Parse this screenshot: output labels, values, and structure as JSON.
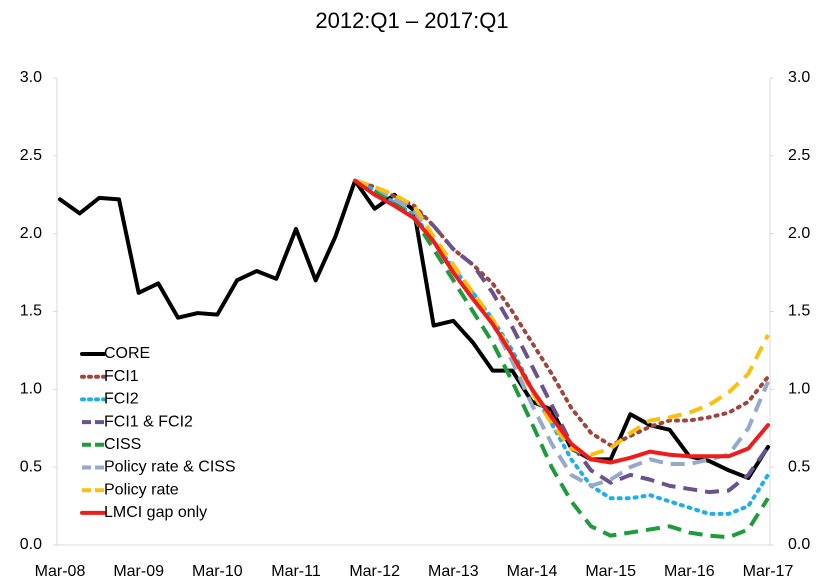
{
  "chart_data": {
    "type": "line",
    "title": "2012:Q1 – 2017:Q1",
    "categories": [
      "Mar-08",
      null,
      null,
      null,
      "Mar-09",
      null,
      null,
      null,
      "Mar-10",
      null,
      null,
      null,
      "Mar-11",
      null,
      null,
      null,
      "Mar-12",
      null,
      null,
      null,
      "Mar-13",
      null,
      null,
      null,
      "Mar-14",
      null,
      null,
      null,
      "Mar-15",
      null,
      null,
      null,
      "Mar-16",
      null,
      null,
      null,
      "Mar-17"
    ],
    "ylim": [
      0,
      3
    ],
    "yticks": [
      {
        "value": 0,
        "label": "0.0"
      },
      {
        "value": 0.5,
        "label": "0.5"
      },
      {
        "value": 1,
        "label": "1.0"
      },
      {
        "value": 1.5,
        "label": "1.5"
      },
      {
        "value": 2,
        "label": "2.0"
      },
      {
        "value": 2.5,
        "label": "2.5"
      },
      {
        "value": 3,
        "label": "3.0"
      }
    ],
    "y2lim": [
      0,
      3
    ],
    "y2ticks": [
      {
        "value": 0,
        "label": "0.0"
      },
      {
        "value": 0.5,
        "label": "0.5"
      },
      {
        "value": 1,
        "label": "1.0"
      },
      {
        "value": 1.5,
        "label": "1.5"
      },
      {
        "value": 2,
        "label": "2.0"
      },
      {
        "value": 2.5,
        "label": "2.5"
      },
      {
        "value": 3,
        "label": "3.0"
      }
    ],
    "legend": "left",
    "series": [
      {
        "name": "CORE",
        "color": "#000000",
        "dash": "solid",
        "values": [
          2.22,
          2.13,
          2.23,
          2.22,
          1.62,
          1.68,
          1.46,
          1.49,
          1.48,
          1.7,
          1.76,
          1.71,
          2.03,
          1.7,
          1.98,
          2.34,
          2.16,
          2.25,
          2.15,
          1.41,
          1.44,
          1.3,
          1.12,
          1.12,
          0.92,
          0.87,
          0.62,
          0.55,
          0.55,
          0.84,
          0.77,
          0.74,
          0.57,
          0.54,
          0.48,
          0.43,
          0.63
        ]
      },
      {
        "name": "FCI1",
        "color": "#a0453d",
        "dash": "dot",
        "values": [
          null,
          null,
          null,
          null,
          null,
          null,
          null,
          null,
          null,
          null,
          null,
          null,
          null,
          null,
          null,
          2.34,
          2.3,
          2.24,
          2.18,
          2.05,
          1.9,
          1.8,
          1.68,
          1.5,
          1.3,
          1.1,
          0.88,
          0.72,
          0.64,
          0.7,
          0.76,
          0.8,
          0.8,
          0.82,
          0.85,
          0.92,
          1.08
        ]
      },
      {
        "name": "FCI2",
        "color": "#1eaee8",
        "dash": "dot",
        "values": [
          null,
          null,
          null,
          null,
          null,
          null,
          null,
          null,
          null,
          null,
          null,
          null,
          null,
          null,
          null,
          2.34,
          2.28,
          2.2,
          2.12,
          1.95,
          1.78,
          1.62,
          1.45,
          1.25,
          1.0,
          0.78,
          0.55,
          0.38,
          0.3,
          0.3,
          0.32,
          0.28,
          0.24,
          0.2,
          0.2,
          0.25,
          0.45
        ]
      },
      {
        "name": "FCI1 & FCI2",
        "color": "#6a528c",
        "dash": "dash",
        "values": [
          null,
          null,
          null,
          null,
          null,
          null,
          null,
          null,
          null,
          null,
          null,
          null,
          null,
          null,
          null,
          2.34,
          2.3,
          2.24,
          2.16,
          2.05,
          1.9,
          1.8,
          1.62,
          1.4,
          1.15,
          0.9,
          0.65,
          0.48,
          0.4,
          0.45,
          0.42,
          0.38,
          0.36,
          0.34,
          0.35,
          0.45,
          0.63
        ]
      },
      {
        "name": "CISS",
        "color": "#1e9b3c",
        "dash": "dash",
        "values": [
          null,
          null,
          null,
          null,
          null,
          null,
          null,
          null,
          null,
          null,
          null,
          null,
          null,
          null,
          null,
          2.34,
          2.28,
          2.2,
          2.1,
          1.9,
          1.7,
          1.5,
          1.3,
          1.05,
          0.78,
          0.5,
          0.28,
          0.12,
          0.06,
          0.08,
          0.1,
          0.12,
          0.08,
          0.06,
          0.05,
          0.1,
          0.3
        ]
      },
      {
        "name": "Policy rate & CISS",
        "color": "#95a9cd",
        "dash": "dash",
        "values": [
          null,
          null,
          null,
          null,
          null,
          null,
          null,
          null,
          null,
          null,
          null,
          null,
          null,
          null,
          null,
          2.34,
          2.3,
          2.22,
          2.15,
          1.95,
          1.78,
          1.62,
          1.42,
          1.18,
          0.9,
          0.65,
          0.45,
          0.38,
          0.42,
          0.5,
          0.55,
          0.52,
          0.52,
          0.55,
          0.58,
          0.75,
          1.05
        ]
      },
      {
        "name": "Policy rate",
        "color": "#fbbf0e",
        "dash": "dash",
        "values": [
          null,
          null,
          null,
          null,
          null,
          null,
          null,
          null,
          null,
          null,
          null,
          null,
          null,
          null,
          null,
          2.34,
          2.3,
          2.25,
          2.18,
          1.98,
          1.8,
          1.62,
          1.45,
          1.22,
          0.98,
          0.78,
          0.62,
          0.58,
          0.62,
          0.72,
          0.8,
          0.82,
          0.85,
          0.9,
          0.98,
          1.1,
          1.35
        ]
      },
      {
        "name": "LMCI gap only",
        "color": "#ee1c1c",
        "dash": "solid",
        "values": [
          null,
          null,
          null,
          null,
          null,
          null,
          null,
          null,
          null,
          null,
          null,
          null,
          null,
          null,
          null,
          2.34,
          2.25,
          2.18,
          2.1,
          1.95,
          1.75,
          1.58,
          1.42,
          1.22,
          1.0,
          0.82,
          0.65,
          0.55,
          0.53,
          0.56,
          0.6,
          0.58,
          0.57,
          0.57,
          0.57,
          0.62,
          0.77
        ]
      }
    ]
  }
}
